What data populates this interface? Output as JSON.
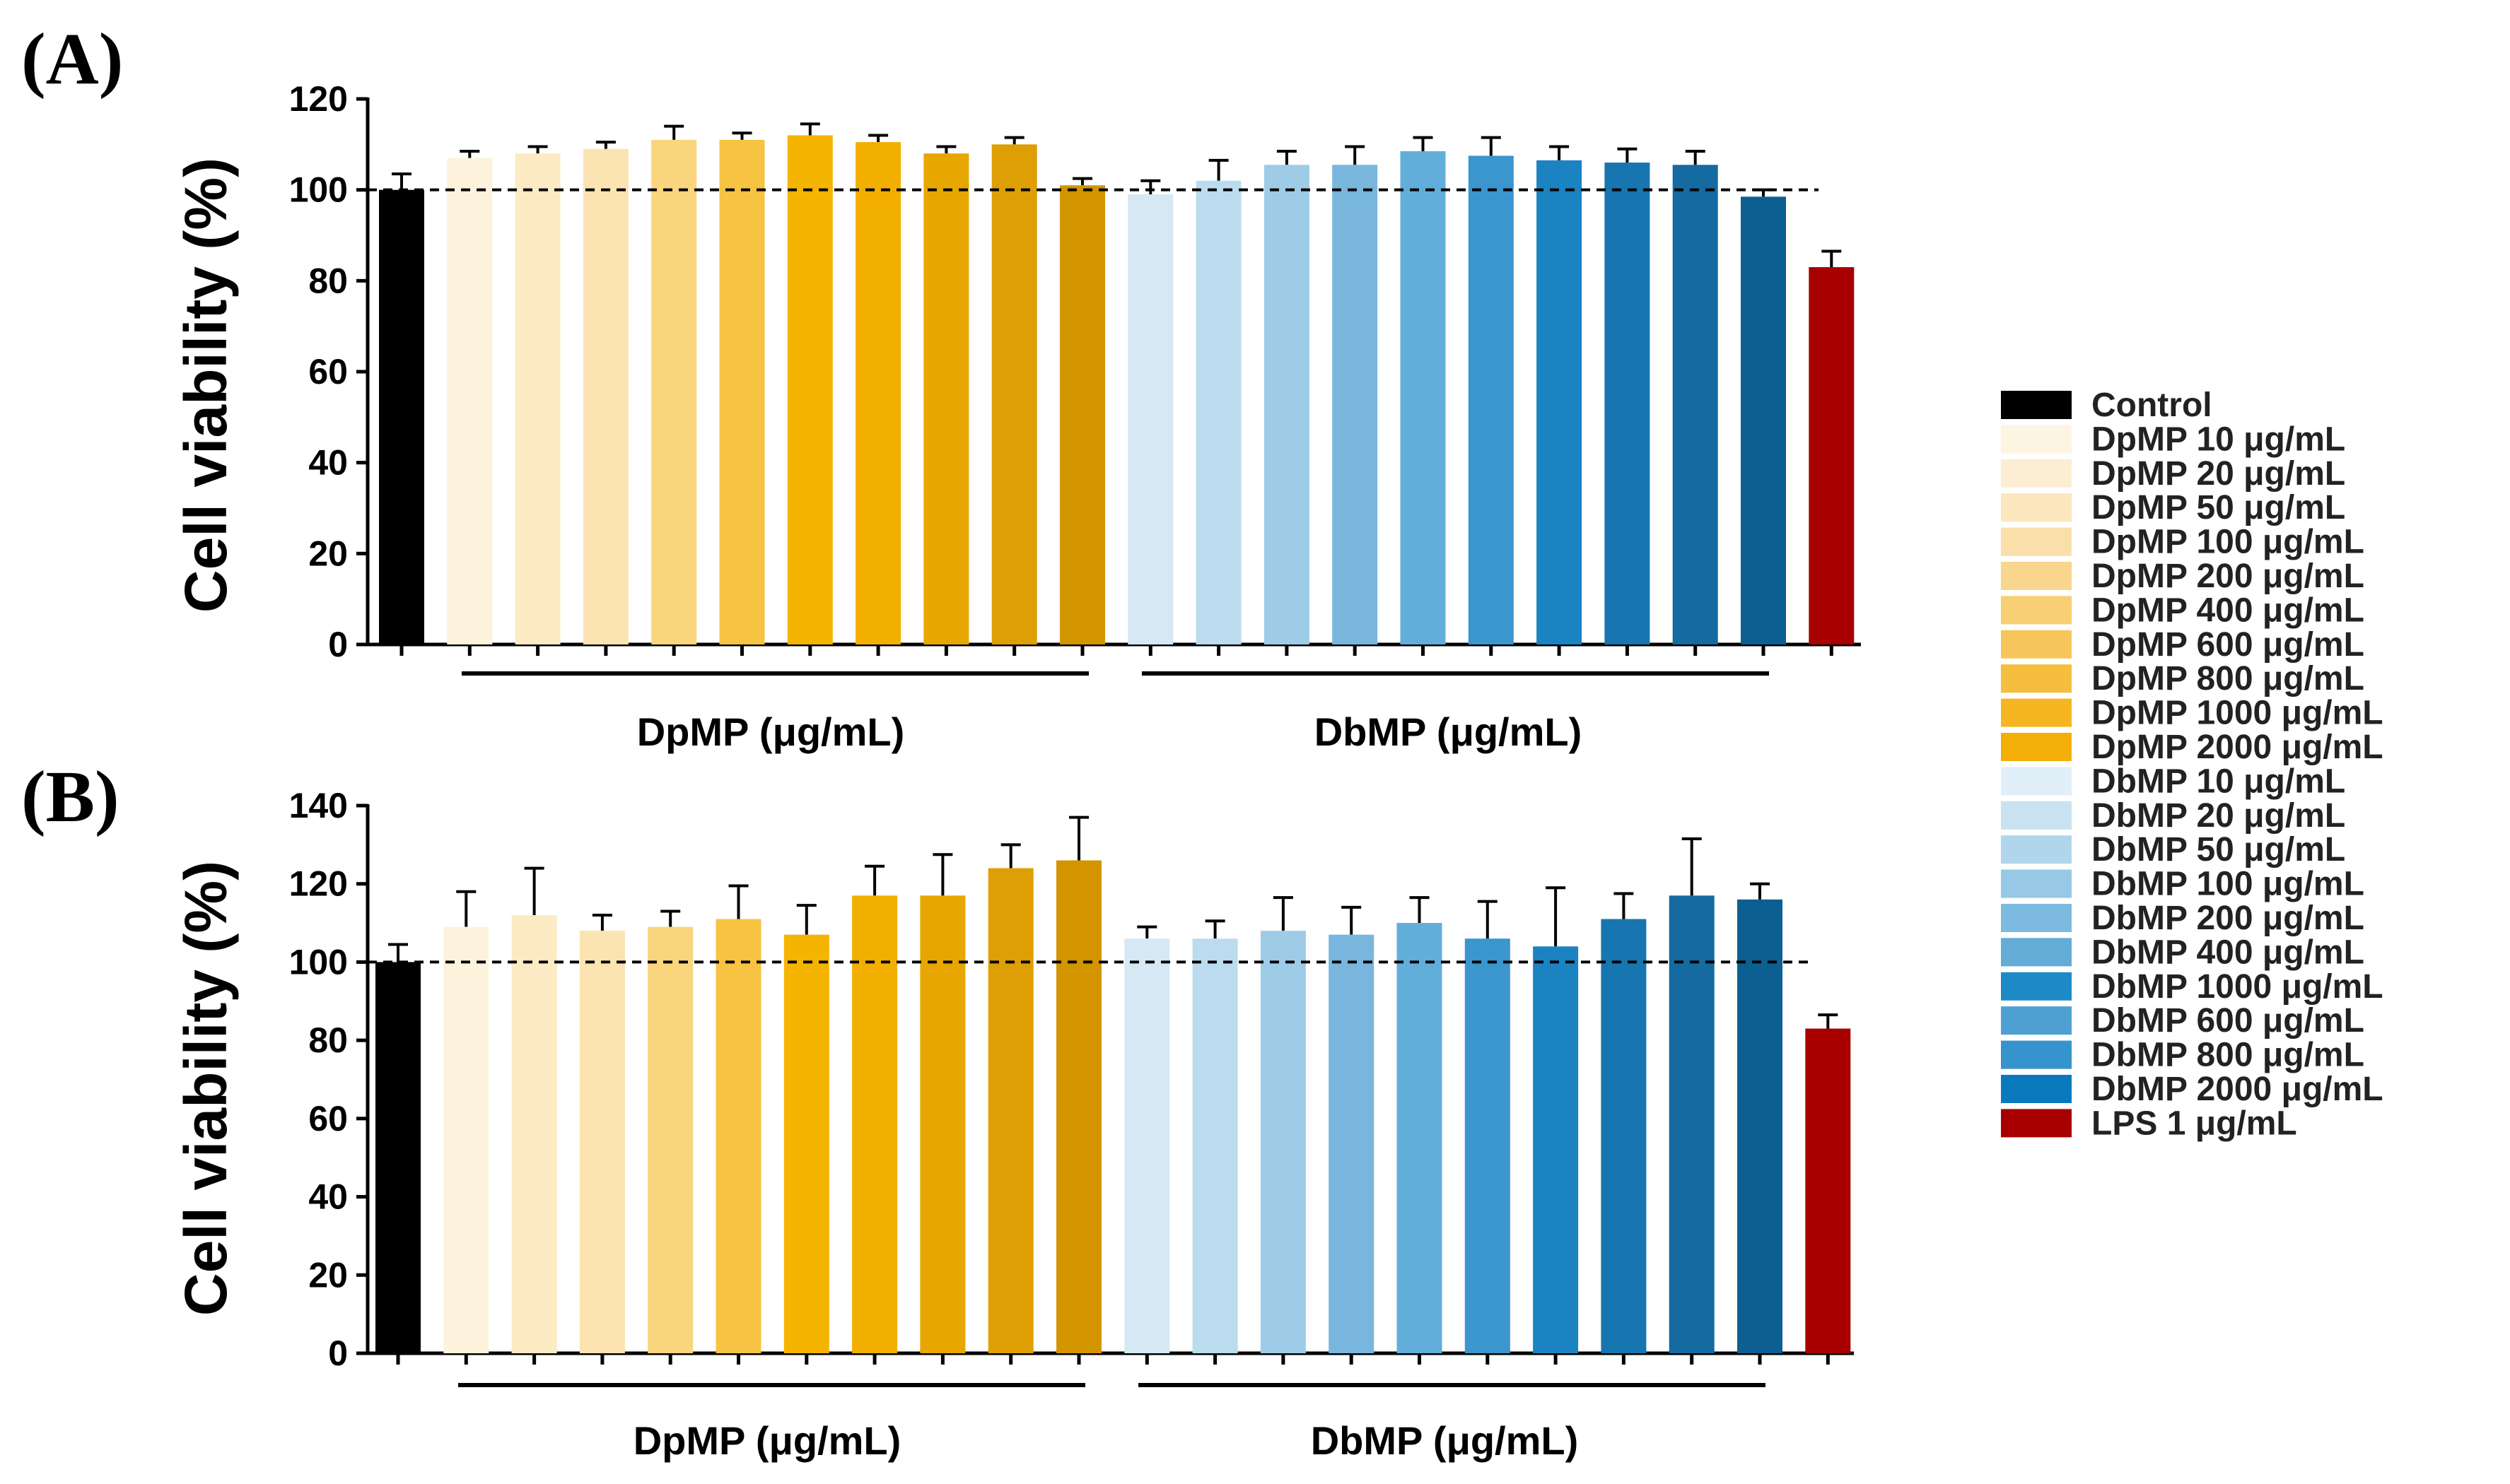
{
  "chart_data": [
    {
      "type": "bar",
      "panel_label": "(A)",
      "ylabel": "Cell viability (%)",
      "ylim": [
        0,
        120
      ],
      "yticks": [
        0,
        20,
        40,
        60,
        80,
        100,
        120
      ],
      "reference_line": 100,
      "categories": [
        "Control",
        "DpMP 10",
        "DpMP 20",
        "DpMP 50",
        "DpMP 100",
        "DpMP 200",
        "DpMP 400",
        "DpMP 600",
        "DpMP 800",
        "DpMP 1000",
        "DpMP 2000",
        "DbMP 10",
        "DbMP 20",
        "DbMP 50",
        "DbMP 100",
        "DbMP 200",
        "DbMP 400",
        "DbMP 600",
        "DbMP 800",
        "DbMP 1000",
        "DbMP 2000",
        "LPS 1"
      ],
      "values": [
        100,
        107,
        108,
        109,
        111,
        111,
        112,
        110.5,
        108,
        110,
        101,
        99,
        102,
        105.5,
        105.5,
        108.5,
        107.5,
        106.5,
        106,
        105.5,
        98.5,
        83
      ],
      "errors": [
        3.5,
        1.5,
        1.5,
        1.5,
        3,
        1.5,
        2.5,
        1.5,
        1.5,
        1.5,
        1.5,
        3,
        4.5,
        3,
        4,
        3,
        4,
        3,
        3,
        3,
        1.5,
        3.5
      ],
      "colors": [
        "#000000",
        "#FDF3DD",
        "#FCEAC4",
        "#FBE3B2",
        "#F9D57E",
        "#F6C342",
        "#F5B400",
        "#F2AF00",
        "#E7A700",
        "#DE9F05",
        "#D29500",
        "#D5E8F4",
        "#BBDCEF",
        "#9ECCE7",
        "#78B6DD",
        "#62AEDB",
        "#3A96CD",
        "#1C83C3",
        "#1775B0",
        "#146AA1",
        "#0C5F91",
        "#A80000"
      ],
      "group_labels": [
        "DpMP (μg/mL)",
        "DbMP (μg/mL)"
      ]
    },
    {
      "type": "bar",
      "panel_label": "(B)",
      "ylabel": "Cell viability (%)",
      "ylim": [
        0,
        140
      ],
      "yticks": [
        0,
        20,
        40,
        60,
        80,
        100,
        120,
        140
      ],
      "reference_line": 100,
      "categories": [
        "Control",
        "DpMP 10",
        "DpMP 20",
        "DpMP 50",
        "DpMP 100",
        "DpMP 200",
        "DpMP 400",
        "DpMP 600",
        "DpMP 800",
        "DpMP 1000",
        "DpMP 2000",
        "DbMP 10",
        "DbMP 20",
        "DbMP 50",
        "DbMP 100",
        "DbMP 200",
        "DbMP 400",
        "DbMP 600",
        "DbMP 800",
        "DbMP 1000",
        "DbMP 2000",
        "LPS 1"
      ],
      "values": [
        100,
        109,
        112,
        108,
        109,
        111,
        107,
        117,
        117,
        124,
        126,
        106,
        106,
        108,
        107,
        110,
        106,
        104,
        111,
        117,
        116,
        83
      ],
      "errors": [
        4.5,
        9,
        12,
        4,
        4,
        8.5,
        7.5,
        7.5,
        10.5,
        6,
        11,
        3,
        4.5,
        8.5,
        7,
        6.5,
        9.5,
        15,
        6.5,
        14.5,
        4,
        3.5
      ],
      "colors": [
        "#000000",
        "#FDF3DD",
        "#FCEAC4",
        "#FBE3B2",
        "#F9D57E",
        "#F6C342",
        "#F5B400",
        "#F2AF00",
        "#E7A700",
        "#DE9F05",
        "#D29500",
        "#D5E8F4",
        "#BBDCEF",
        "#9ECCE7",
        "#78B6DD",
        "#62AEDB",
        "#3A96CD",
        "#1C83C3",
        "#1775B0",
        "#146AA1",
        "#0C5F91",
        "#A80000"
      ],
      "group_labels": [
        "DpMP (μg/mL)",
        "DbMP (μg/mL)"
      ]
    }
  ],
  "legend": [
    {
      "label": "Control",
      "color": "#000000"
    },
    {
      "label": "DpMP 10 μg/mL",
      "color": "#FDF4E2"
    },
    {
      "label": "DpMP 20 μg/mL",
      "color": "#FCEED2"
    },
    {
      "label": "DpMP 50 μg/mL",
      "color": "#FBE6BD"
    },
    {
      "label": "DpMP 100 μg/mL",
      "color": "#FADFAB"
    },
    {
      "label": "DpMP 200 μg/mL",
      "color": "#F9D68D"
    },
    {
      "label": "DpMP 400 μg/mL",
      "color": "#F8CF72"
    },
    {
      "label": "DpMP 600 μg/mL",
      "color": "#F7C65A"
    },
    {
      "label": "DpMP 800 μg/mL",
      "color": "#F6BE3E"
    },
    {
      "label": "DpMP 1000 μg/mL",
      "color": "#F5B621"
    },
    {
      "label": "DpMP 2000 μg/mL",
      "color": "#F4AE0A"
    },
    {
      "label": "DbMP 10 μg/mL",
      "color": "#E0EFF8"
    },
    {
      "label": "DbMP 20 μg/mL",
      "color": "#C8E2F2"
    },
    {
      "label": "DbMP 50 μg/mL",
      "color": "#B1D6EC"
    },
    {
      "label": "DbMP 100 μg/mL",
      "color": "#97C8E5"
    },
    {
      "label": "DbMP 200 μg/mL",
      "color": "#7DBADF"
    },
    {
      "label": "DbMP 400 μg/mL",
      "color": "#63ACD8"
    },
    {
      "label": "DbMP 1000 μg/mL",
      "color": "#1E89C7"
    },
    {
      "label": "DbMP 600 μg/mL",
      "color": "#4FA0D2"
    },
    {
      "label": "DbMP 800 μg/mL",
      "color": "#3594CD"
    },
    {
      "label": "DbMP 2000 μg/mL",
      "color": "#0A78BD"
    },
    {
      "label": "LPS 1 μg/mL",
      "color": "#A80000"
    }
  ]
}
